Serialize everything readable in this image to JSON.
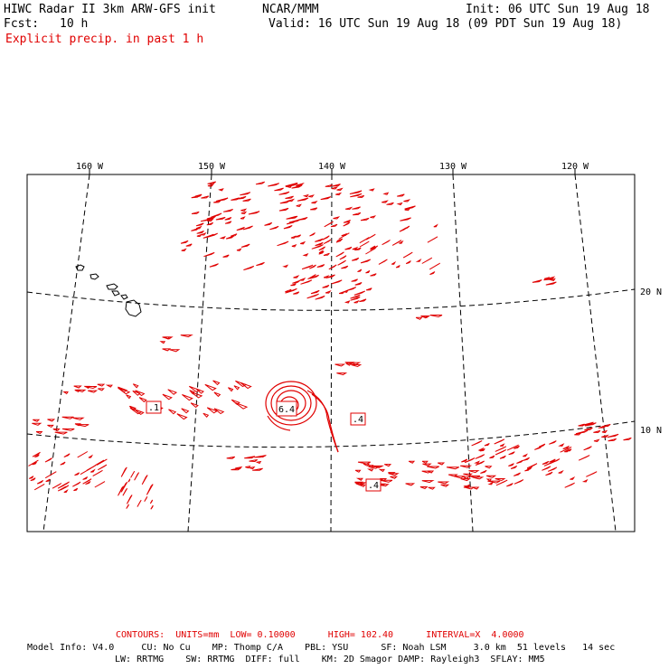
{
  "header": {
    "title": "HIWC Radar II 3km ARW-GFS init",
    "org": "NCAR/MMM",
    "init": "Init: 06 UTC Sun 19 Aug 18",
    "fcst_label": "Fcst:",
    "fcst_value": "10 h",
    "valid": "Valid: 16 UTC Sun 19 Aug 18 (09 PDT Sun 19 Aug 18)",
    "field": "Explicit precip. in past 1 h"
  },
  "map": {
    "lon_labels": [
      "160 W",
      "150 W",
      "140 W",
      "130 W",
      "120 W"
    ],
    "lat_labels": [
      "20 N",
      "10 N"
    ],
    "contour_labels": [
      ".1",
      "6.4",
      ".4",
      ".4"
    ],
    "colors": {
      "contour": "#e00000",
      "grid": "#000000",
      "land": "#000000"
    }
  },
  "footer": {
    "contours_line": "CONTOURS:  UNITS=mm  LOW= 0.10000      HIGH= 102.40      INTERVAL=X  4.0000",
    "model_line1": "Model Info: V4.0     CU: No Cu    MP: Thomp C/A    PBL: YSU      SF: Noah LSM     3.0 km  51 levels   14 sec",
    "model_line2": "LW: RRTMG    SW: RRTMG  DIFF: full    KM: 2D Smagor DAMP: Rayleigh3  SFLAY: MM5"
  }
}
